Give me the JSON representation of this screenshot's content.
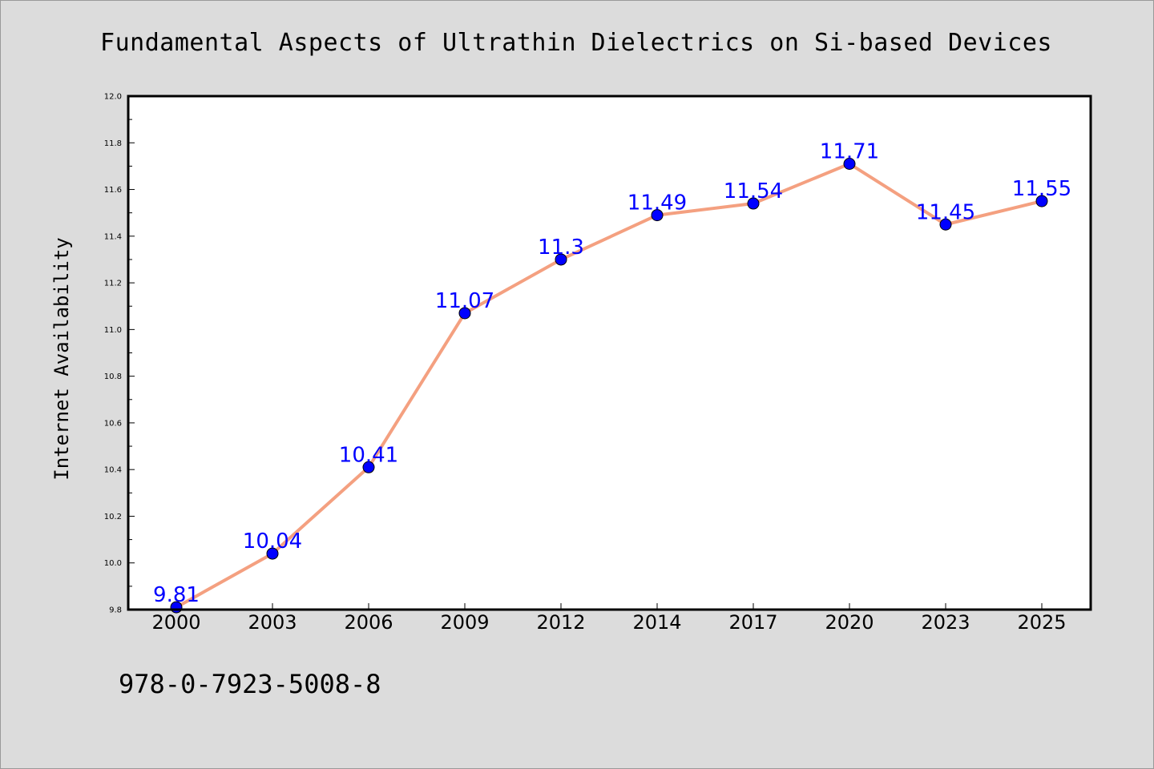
{
  "chart_data": {
    "type": "line",
    "title": "Fundamental Aspects of Ultrathin Dielectrics on Si-based Devices",
    "xlabel": "",
    "ylabel": "Internet Availability",
    "categories": [
      "2000",
      "2003",
      "2006",
      "2009",
      "2012",
      "2014",
      "2017",
      "2020",
      "2023",
      "2025"
    ],
    "series": [
      {
        "values": [
          9.81,
          10.04,
          10.41,
          11.07,
          11.3,
          11.49,
          11.54,
          11.71,
          11.45,
          11.55
        ],
        "data_labels": [
          "9.81",
          "10.04",
          "10.41",
          "11.07",
          "11.3",
          "11.49",
          "11.54",
          "11.71",
          "11.45",
          "11.55"
        ],
        "line_color": "#f4a080",
        "marker_color": "#0000ff",
        "label_color": "#0000ff"
      }
    ],
    "ylim": [
      9.8,
      12.0
    ],
    "yticks": [
      "9.8",
      "10.0",
      "10.2",
      "10.4",
      "10.6",
      "10.8",
      "11.0",
      "11.2",
      "11.4",
      "11.6",
      "11.8",
      "12.0"
    ],
    "grid": false
  },
  "footer": {
    "text": "978-0-7923-5008-8"
  },
  "colors": {
    "background": "#dcdcdc",
    "plot_area": "#ffffff"
  }
}
